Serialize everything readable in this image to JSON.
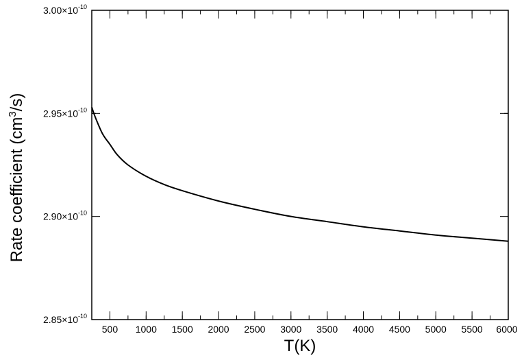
{
  "chart_data": {
    "type": "line",
    "xlabel": "T(K)",
    "ylabel": {
      "prefix": "Rate coefficient (cm",
      "superscript": "3",
      "suffix": "/s)"
    },
    "xlim": [
      250,
      6000
    ],
    "ylim": [
      2.85e-10,
      3e-10
    ],
    "x_ticks": [
      500,
      1000,
      1500,
      2000,
      2500,
      3000,
      3500,
      4000,
      4500,
      5000,
      5500,
      6000
    ],
    "x_minor_step": 250,
    "y_ticks": [
      {
        "value": 2.85e-10,
        "mantissa": "2.85",
        "times": "×",
        "base": "10",
        "exponent": "-10"
      },
      {
        "value": 2.9e-10,
        "mantissa": "2.90",
        "times": "×",
        "base": "10",
        "exponent": "-10"
      },
      {
        "value": 2.95e-10,
        "mantissa": "2.95",
        "times": "×",
        "base": "10",
        "exponent": "-10"
      },
      {
        "value": 3e-10,
        "mantissa": "3.00",
        "times": "×",
        "base": "10",
        "exponent": "-10"
      }
    ],
    "y_minor_step": 1e-11,
    "grid": false,
    "series": [
      {
        "color": "#000000",
        "x": [
          250,
          300,
          400,
          500,
          600,
          750,
          1000,
          1250,
          1500,
          2000,
          2500,
          3000,
          3500,
          4000,
          4500,
          5000,
          5500,
          6000
        ],
        "y": [
          2.953e-10,
          2.948e-10,
          2.94e-10,
          2.935e-10,
          2.93e-10,
          2.925e-10,
          2.9195e-10,
          2.9155e-10,
          2.9125e-10,
          2.9075e-10,
          2.9035e-10,
          2.9e-10,
          2.8975e-10,
          2.895e-10,
          2.893e-10,
          2.891e-10,
          2.8895e-10,
          2.888e-10
        ]
      }
    ]
  }
}
